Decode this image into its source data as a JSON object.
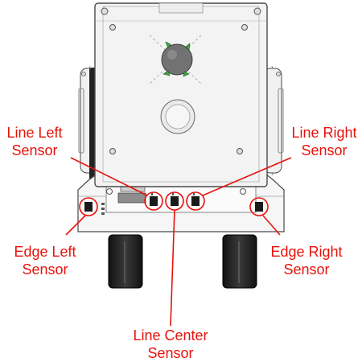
{
  "colors": {
    "label_red": "#e8120c",
    "outline": "#4a4a4a",
    "body_fill": "#f4f4f4",
    "wheel_dark": "#1f1f1f",
    "motor_gray": "#707070",
    "clip_green": "#3fa33f"
  },
  "labels": {
    "line_left": [
      "Line Left",
      "Sensor"
    ],
    "line_right": [
      "Line Right",
      "Sensor"
    ],
    "edge_left": [
      "Edge Left",
      "Sensor"
    ],
    "edge_right": [
      "Edge Right",
      "Sensor"
    ],
    "line_center": [
      "Line Center",
      "Sensor"
    ]
  }
}
